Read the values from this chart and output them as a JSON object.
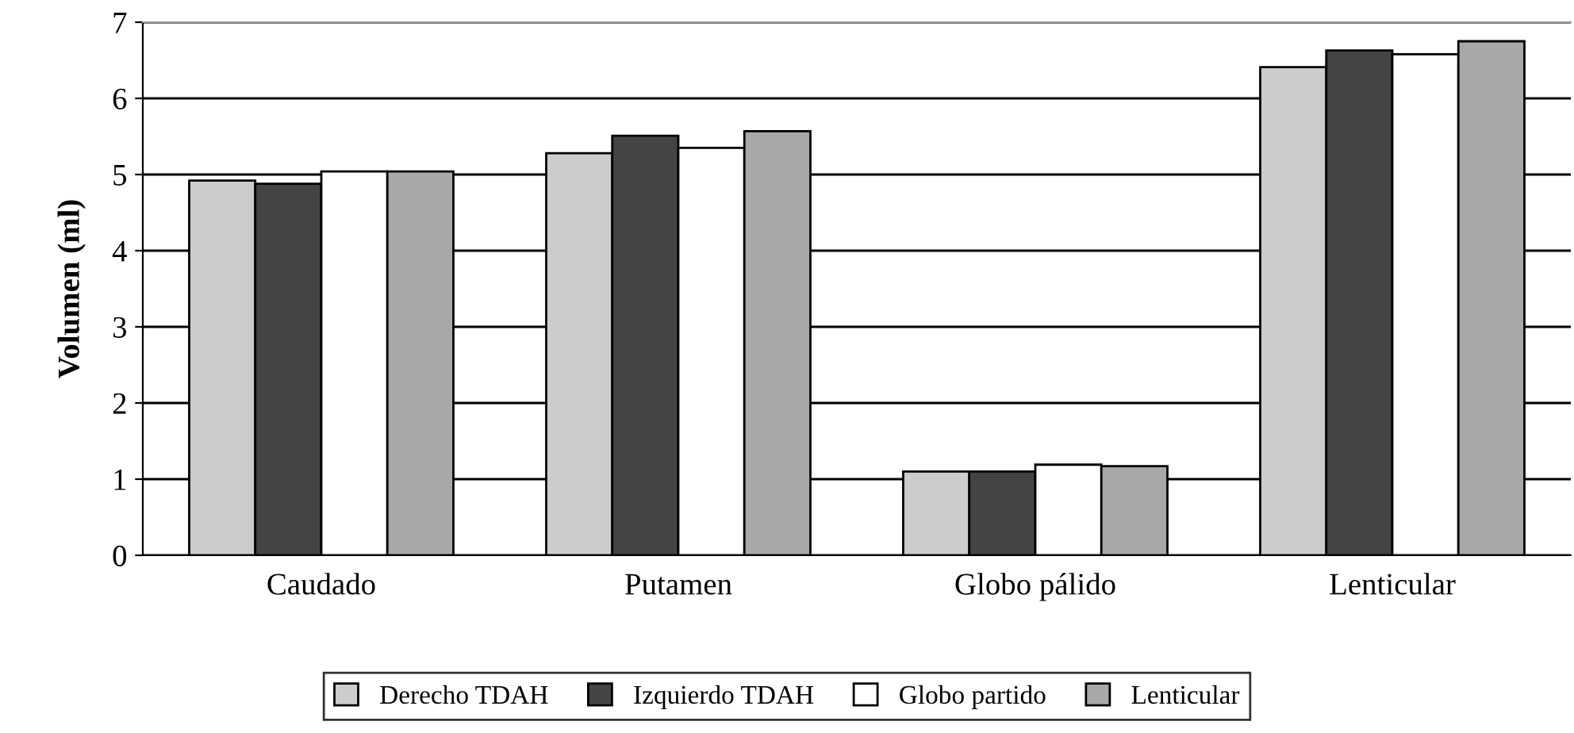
{
  "chart_data": {
    "type": "bar",
    "ylabel": "Volumen (ml)",
    "categories": [
      "Caudado",
      "Putamen",
      "Globo pálido",
      "Lenticular"
    ],
    "series": [
      {
        "name": "Derecho TDAH",
        "color": "#cccccc",
        "values": [
          4.92,
          5.28,
          1.1,
          6.41
        ]
      },
      {
        "name": "Izquierdo TDAH",
        "color": "#444444",
        "values": [
          4.88,
          5.51,
          1.1,
          6.63
        ]
      },
      {
        "name": "Globo partido",
        "color": "#ffffff",
        "values": [
          5.04,
          5.35,
          1.19,
          6.58
        ]
      },
      {
        "name": "Lenticular",
        "color": "#a8a8a8",
        "values": [
          5.04,
          5.57,
          1.17,
          6.75
        ]
      }
    ],
    "ylim": [
      0,
      7
    ],
    "yticks": [
      0,
      1,
      2,
      3,
      4,
      5,
      6,
      7
    ],
    "grid": "y",
    "legend": "bottom"
  }
}
